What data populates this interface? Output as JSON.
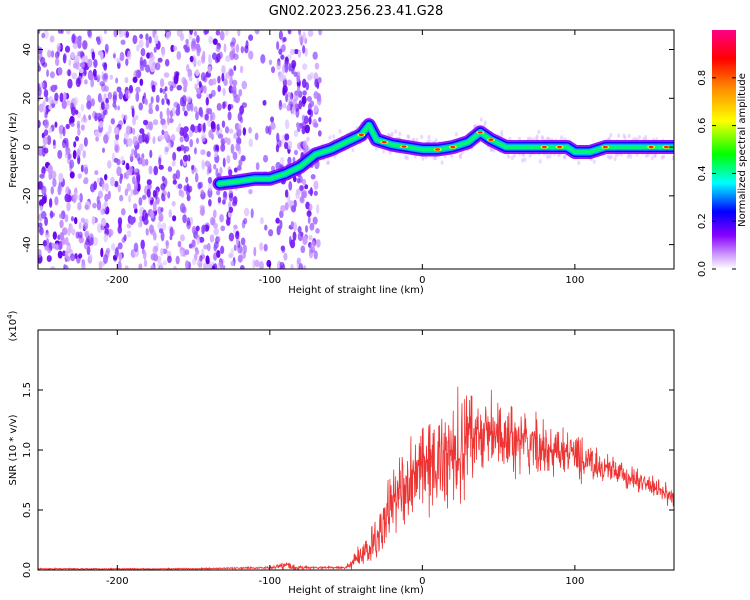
{
  "title": "GN02.2023.256.23.41.G28",
  "chart_data": [
    {
      "type": "heatmap",
      "xlabel": "Height of straight line (km)",
      "ylabel": "Frequency (Hz)",
      "xlim": [
        -252,
        165
      ],
      "ylim": [
        -50,
        48
      ],
      "xticks": [
        -200,
        -100,
        0,
        100
      ],
      "yticks": [
        -40,
        -20,
        0,
        20,
        40
      ],
      "grid": false,
      "colorbar": {
        "label": "Normalized spectral amplitude",
        "range": [
          0.0,
          1.0
        ],
        "ticks": [
          "0.0",
          "0.2",
          "0.4",
          "0.6",
          "0.8"
        ],
        "colormap": [
          "#ffffff",
          "#cc99ff",
          "#8800ff",
          "#0000ff",
          "#00ffff",
          "#00ff00",
          "#ffff00",
          "#ff8800",
          "#ff0000",
          "#ff0088"
        ]
      },
      "ridge": {
        "x": [
          -133,
          -120,
          -110,
          -100,
          -90,
          -80,
          -70,
          -60,
          -50,
          -40,
          -35,
          -30,
          -20,
          -10,
          0,
          10,
          20,
          30,
          38,
          45,
          55,
          65,
          75,
          85,
          95,
          100,
          110,
          120,
          130,
          140,
          150,
          160,
          165
        ],
        "frequency": [
          -15,
          -14,
          -13,
          -13,
          -11,
          -8,
          -3,
          -1,
          2,
          5,
          9,
          3,
          1,
          0,
          -1,
          -1,
          0,
          2,
          6,
          3,
          0,
          0,
          0,
          0,
          0,
          -2,
          -2,
          0,
          0,
          0,
          0,
          0,
          0
        ]
      }
    },
    {
      "type": "line",
      "xlabel": "Height of straight line (km)",
      "ylabel": "SNR (10 * v/v)",
      "y_scale_label": "(x10",
      "y_scale_exponent": "4",
      "y_scale_suffix": ")",
      "xlim": [
        -252,
        165
      ],
      "ylim": [
        0,
        2.0
      ],
      "xticks": [
        -200,
        -100,
        0,
        100
      ],
      "yticks": [
        0.0,
        0.5,
        1.0,
        1.5
      ],
      "ytick_labels": [
        "0.0",
        "0.5",
        "1.0",
        "1.5"
      ],
      "grid": false,
      "color": "#ee3333",
      "series": [
        {
          "x": [
            -252,
            -200,
            -150,
            -100,
            -90,
            -80,
            -70,
            -60,
            -50,
            -40,
            -30,
            -20,
            -10,
            0,
            10,
            20,
            30,
            40,
            50,
            60,
            70,
            80,
            90,
            100,
            110,
            120,
            130,
            140,
            150,
            165
          ],
          "mean": [
            0.01,
            0.01,
            0.01,
            0.02,
            0.04,
            0.02,
            0.02,
            0.02,
            0.02,
            0.12,
            0.25,
            0.55,
            0.75,
            0.85,
            0.9,
            1.0,
            1.1,
            1.15,
            1.1,
            1.08,
            1.05,
            1.0,
            0.98,
            0.95,
            0.9,
            0.85,
            0.8,
            0.75,
            0.7,
            0.6
          ],
          "spread": [
            0.005,
            0.005,
            0.005,
            0.01,
            0.04,
            0.02,
            0.01,
            0.01,
            0.01,
            0.12,
            0.2,
            0.3,
            0.35,
            0.35,
            0.4,
            0.45,
            0.45,
            0.35,
            0.3,
            0.28,
            0.25,
            0.22,
            0.2,
            0.18,
            0.15,
            0.12,
            0.1,
            0.1,
            0.08,
            0.08
          ]
        }
      ]
    }
  ]
}
